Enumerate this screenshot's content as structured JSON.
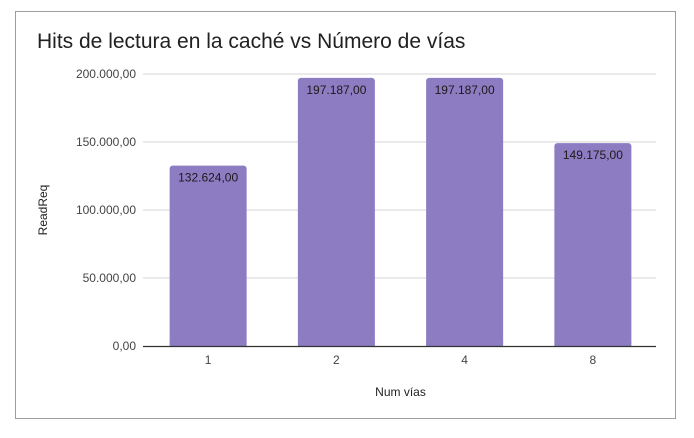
{
  "chart_data": {
    "type": "bar",
    "title": "Hits de lectura en la caché vs Número de vías",
    "xlabel": "Num vías",
    "ylabel": "ReadReq",
    "categories": [
      "1",
      "2",
      "4",
      "8"
    ],
    "values": [
      132624,
      197187,
      197187,
      149175
    ],
    "value_labels": [
      "132.624,00",
      "197.187,00",
      "197.187,00",
      "149.175,00"
    ],
    "ylim": [
      0,
      200000
    ],
    "yticks": [
      0,
      50000,
      100000,
      150000,
      200000
    ],
    "ytick_labels": [
      "0,00",
      "50.000,00",
      "100.000,00",
      "150.000,00",
      "200.000,00"
    ],
    "grid": true,
    "legend": "none",
    "bar_color": "#8e7cc3"
  }
}
